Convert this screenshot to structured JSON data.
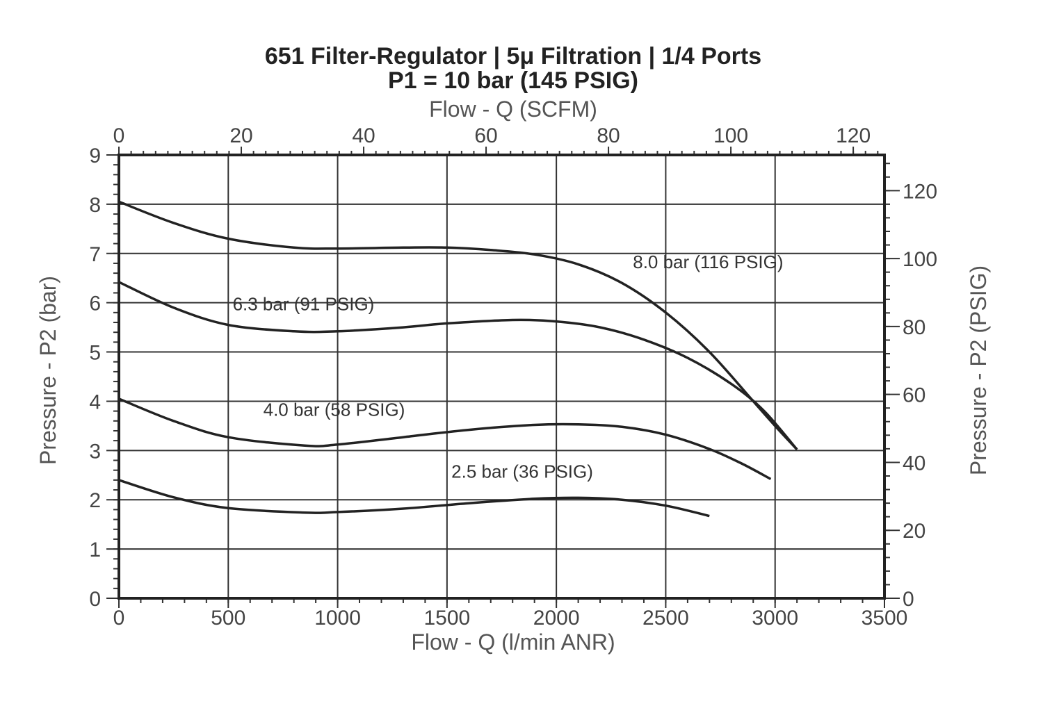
{
  "chart_data": {
    "type": "line",
    "title": "651 Filter-Regulator | 5μ Filtration | 1/4 Ports",
    "subtitle": "P1 = 10 bar (145 PSIG)",
    "xlabel": "Flow - Q (l/min ANR)",
    "xlabel_top": "Flow - Q (SCFM)",
    "ylabel": "Pressure - P2 (bar)",
    "ylabel_right": "Pressure - P2 (PSIG)",
    "xlim": [
      0,
      3500
    ],
    "ylim": [
      0,
      9
    ],
    "xlim_top": [
      0,
      125.1
    ],
    "ylim_right": [
      0,
      130.5
    ],
    "x_ticks": [
      "0",
      "500",
      "1000",
      "1500",
      "2000",
      "2500",
      "3000",
      "3500"
    ],
    "x_top_ticks": [
      "0",
      "20",
      "40",
      "60",
      "80",
      "100",
      "120"
    ],
    "y_ticks": [
      "0",
      "1",
      "2",
      "3",
      "4",
      "5",
      "6",
      "7",
      "8",
      "9"
    ],
    "y_right_ticks": [
      "0",
      "20",
      "40",
      "60",
      "80",
      "100",
      "120"
    ],
    "grid": true,
    "series": [
      {
        "name": "8.0 bar (116 PSIG)",
        "x": [
          0,
          250,
          500,
          800,
          1000,
          1300,
          1500,
          1700,
          1900,
          2100,
          2300,
          2500,
          2700,
          2900,
          3000,
          3100
        ],
        "y": [
          8.05,
          7.62,
          7.3,
          7.12,
          7.1,
          7.12,
          7.12,
          7.07,
          6.98,
          6.78,
          6.4,
          5.8,
          5.0,
          4.0,
          3.5,
          3.02
        ]
      },
      {
        "name": "6.3 bar (91 PSIG)",
        "x": [
          0,
          250,
          500,
          800,
          1000,
          1300,
          1500,
          1800,
          2000,
          2200,
          2400,
          2600,
          2800,
          2950,
          3100
        ],
        "y": [
          6.42,
          5.9,
          5.55,
          5.42,
          5.42,
          5.5,
          5.58,
          5.65,
          5.62,
          5.5,
          5.25,
          4.88,
          4.35,
          3.8,
          3.02
        ]
      },
      {
        "name": "4.0 bar (58 PSIG)",
        "x": [
          0,
          250,
          500,
          850,
          1000,
          1300,
          1600,
          1900,
          2100,
          2300,
          2500,
          2700,
          2850,
          2980
        ],
        "y": [
          4.05,
          3.6,
          3.27,
          3.1,
          3.12,
          3.27,
          3.42,
          3.52,
          3.53,
          3.48,
          3.32,
          3.03,
          2.73,
          2.42
        ]
      },
      {
        "name": "2.5 bar (36 PSIG)",
        "x": [
          0,
          250,
          500,
          850,
          1000,
          1300,
          1600,
          1900,
          2100,
          2300,
          2500,
          2700
        ],
        "y": [
          2.4,
          2.05,
          1.83,
          1.74,
          1.75,
          1.82,
          1.93,
          2.02,
          2.04,
          2.0,
          1.88,
          1.67
        ]
      }
    ]
  }
}
